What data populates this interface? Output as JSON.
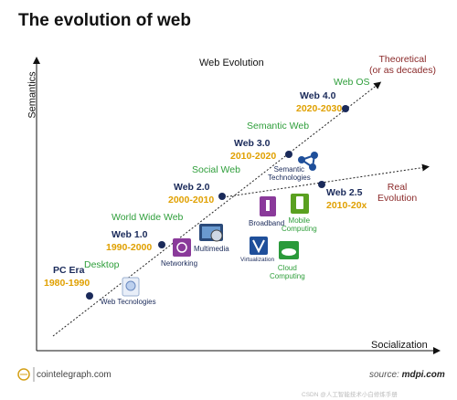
{
  "title": "The evolution of web",
  "y_axis_label": "Semantics",
  "x_axis_label": "Socialization",
  "diagram_title": "Web Evolution",
  "milestones": [
    {
      "era": "PC Era",
      "years": "1980-1990",
      "label": "Desktop"
    },
    {
      "era": "Web 1.0",
      "years": "1990-2000",
      "label": "World Wide Web"
    },
    {
      "era": "Web 2.0",
      "years": "2000-2010",
      "label": "Social Web"
    },
    {
      "era": "Web 3.0",
      "years": "2010-2020",
      "label": "Semantic Web"
    },
    {
      "era": "Web 4.0",
      "years": "2020-2030",
      "label": "Web OS"
    }
  ],
  "real_branch": {
    "era": "Web 2.5",
    "years": "2010-20x"
  },
  "trend_labels": {
    "theoretical_line1": "Theoretical",
    "theoretical_line2": "(or as decades)",
    "real_line1": "Real",
    "real_line2": "Evolution"
  },
  "technologies": {
    "web_technologies": "Web Tecnologies",
    "networking": "Networking",
    "multimedia": "Multimedia",
    "virtualization": "Virtualization",
    "cloud_line1": "Cloud",
    "cloud_line2": "Computing",
    "broadband": "Broadband",
    "mobile_line1": "Mobile",
    "mobile_line2": "Computing",
    "semantic_line1": "Semantic",
    "semantic_line2": "Technologies"
  },
  "footer": {
    "brand": "cointelegraph.com",
    "source_prefix": "source:",
    "source_name": "mdpi.com",
    "watermark": "CSDN @人工智能技术小白修炼手册"
  },
  "colors": {
    "era_text": "#1a2a5a",
    "year_text": "#e0a000",
    "label_green": "#2e9e3a",
    "trend_red": "#8b2a2a",
    "dot": "#1a2a5a"
  }
}
